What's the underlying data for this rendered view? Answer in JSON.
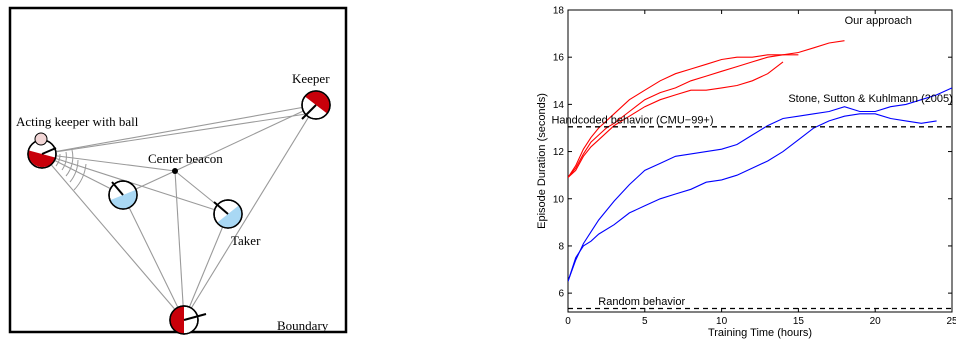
{
  "diagram": {
    "labels": {
      "keeper": "Keeper",
      "acting_keeper": "Acting keeper with ball",
      "center_beacon": "Center beacon",
      "taker": "Taker",
      "boundary": "Boundary"
    },
    "colors": {
      "keeper_fill": "#c8000a",
      "taker_fill": "#a9d8f4",
      "line": "#9a9a9a",
      "border": "#000000",
      "ball": "#f2d6d6"
    },
    "icons": {
      "keeper": "half-filled-circle-red",
      "taker": "half-filled-circle-blue",
      "ball": "small-circle"
    }
  },
  "chart_data": {
    "type": "line",
    "xlabel": "Training Time (hours)",
    "ylabel": "Episode Duration (seconds)",
    "xlim": [
      0,
      25
    ],
    "ylim": [
      5.2,
      18
    ],
    "xticks": [
      0,
      5,
      10,
      15,
      20,
      25
    ],
    "yticks": [
      6,
      8,
      10,
      12,
      14,
      16,
      18
    ],
    "grid": false,
    "legend": "none",
    "series": [
      {
        "group": "our",
        "color": "#ff0000",
        "x": [
          0,
          0.5,
          1,
          1.5,
          2,
          2.5,
          3,
          4,
          5,
          6,
          7,
          8,
          9,
          10,
          11,
          12,
          13,
          14,
          15,
          16,
          17,
          18
        ],
        "y": [
          10.9,
          11.4,
          12.1,
          12.6,
          13.0,
          13.3,
          13.6,
          14.2,
          14.6,
          15.0,
          15.3,
          15.5,
          15.7,
          15.9,
          16.0,
          16.0,
          16.1,
          16.1,
          16.2,
          16.4,
          16.6,
          16.7
        ]
      },
      {
        "group": "our",
        "color": "#ff0000",
        "x": [
          0,
          0.5,
          1,
          1.5,
          2,
          2.5,
          3,
          4,
          5,
          6,
          7,
          8,
          9,
          10,
          11,
          12,
          13,
          14,
          15
        ],
        "y": [
          10.9,
          11.3,
          11.9,
          12.4,
          12.7,
          13.0,
          13.2,
          13.7,
          14.2,
          14.5,
          14.7,
          15.0,
          15.2,
          15.4,
          15.6,
          15.8,
          16.0,
          16.1,
          16.1
        ]
      },
      {
        "group": "our",
        "color": "#ff0000",
        "x": [
          0,
          0.5,
          1,
          1.5,
          2,
          2.5,
          3,
          4,
          5,
          6,
          7,
          8,
          9,
          10,
          11,
          12,
          13,
          14
        ],
        "y": [
          10.9,
          11.2,
          11.8,
          12.2,
          12.5,
          12.8,
          13.1,
          13.5,
          13.9,
          14.2,
          14.4,
          14.6,
          14.6,
          14.7,
          14.8,
          15.0,
          15.3,
          15.8
        ]
      },
      {
        "group": "stone",
        "color": "#0000ff",
        "x": [
          0,
          0.5,
          1,
          1.5,
          2,
          3,
          4,
          5,
          6,
          7,
          8,
          9,
          10,
          11,
          12,
          13,
          14,
          15,
          16,
          17,
          18,
          19,
          20,
          21,
          22,
          23,
          24,
          25
        ],
        "y": [
          6.5,
          7.4,
          8.1,
          8.6,
          9.1,
          9.9,
          10.6,
          11.2,
          11.5,
          11.8,
          11.9,
          12.0,
          12.1,
          12.3,
          12.7,
          13.1,
          13.4,
          13.5,
          13.6,
          13.7,
          13.9,
          13.7,
          13.7,
          13.9,
          14.0,
          14.2,
          14.4,
          14.7
        ]
      },
      {
        "group": "stone",
        "color": "#0000ff",
        "x": [
          0,
          0.5,
          1,
          1.5,
          2,
          3,
          4,
          5,
          6,
          7,
          8,
          9,
          10,
          11,
          12,
          13,
          14,
          15,
          16,
          17,
          18,
          19,
          20,
          21,
          22,
          23,
          24
        ],
        "y": [
          6.5,
          7.5,
          8.0,
          8.2,
          8.5,
          8.9,
          9.4,
          9.7,
          10.0,
          10.2,
          10.4,
          10.7,
          10.8,
          11.0,
          11.3,
          11.6,
          12.0,
          12.5,
          13.0,
          13.3,
          13.5,
          13.6,
          13.6,
          13.4,
          13.3,
          13.2,
          13.3
        ]
      },
      {
        "group": "handcoded",
        "color": "#000000",
        "dashed": true,
        "x": [
          0,
          25
        ],
        "y": [
          13.05,
          13.05
        ]
      },
      {
        "group": "random",
        "color": "#000000",
        "dashed": true,
        "x": [
          0,
          25
        ],
        "y": [
          5.35,
          5.35
        ]
      }
    ],
    "annotations": [
      {
        "text": "Our approach",
        "x": 20.2,
        "y": 17.4
      },
      {
        "text": "Stone, Sutton & Kuhlmann (2005)",
        "x": 19.7,
        "y": 14.1
      },
      {
        "text": "Handcoded behavior (CMU−99+)",
        "x": 4.2,
        "y": 13.2
      },
      {
        "text": "Random behavior",
        "x": 4.8,
        "y": 5.5
      }
    ]
  }
}
